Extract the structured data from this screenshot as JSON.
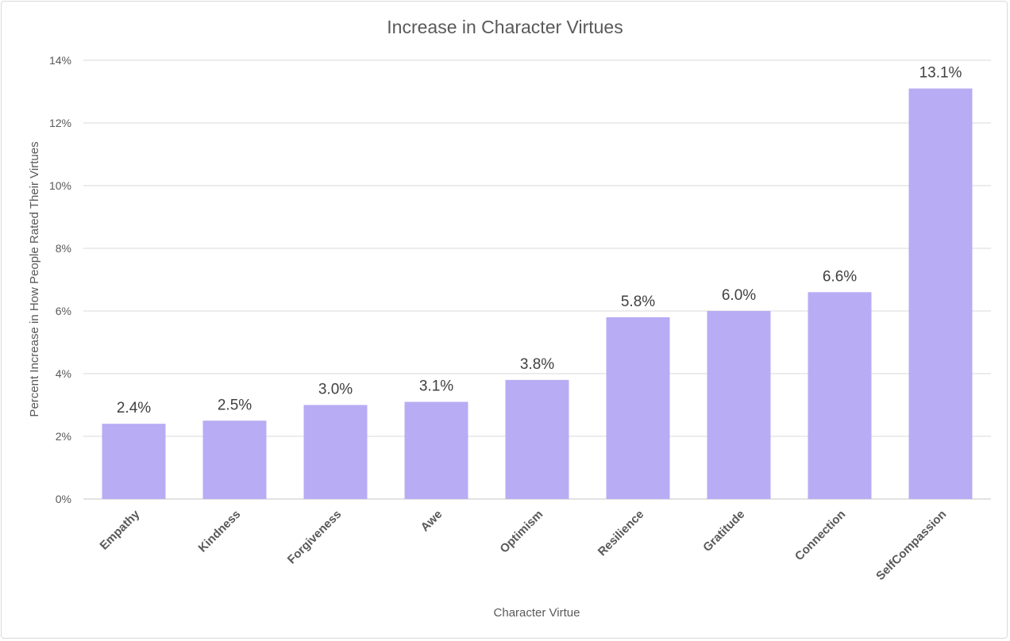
{
  "chart_data": {
    "type": "bar",
    "title": "Increase in Character Virtues",
    "xlabel": "Character Virtue",
    "ylabel": "Percent Increase in How People Rated Their Virtues",
    "categories": [
      "Empathy",
      "Kindness",
      "Forgiveness",
      "Awe",
      "Optimism",
      "Resilience",
      "Gratitude",
      "Connection",
      "SelfCompassion"
    ],
    "values": [
      2.4,
      2.5,
      3.0,
      3.1,
      3.8,
      5.8,
      6.0,
      6.6,
      13.1
    ],
    "data_labels": [
      "2.4%",
      "2.5%",
      "3.0%",
      "3.1%",
      "3.8%",
      "5.8%",
      "6.0%",
      "6.6%",
      "13.1%"
    ],
    "ylim": [
      0,
      14
    ],
    "yticks": [
      0,
      2,
      4,
      6,
      8,
      10,
      12,
      14
    ],
    "ytick_labels": [
      "0%",
      "2%",
      "4%",
      "6%",
      "8%",
      "10%",
      "12%",
      "14%"
    ],
    "grid": true,
    "legend": "none",
    "bar_color": "#b8acf4"
  }
}
